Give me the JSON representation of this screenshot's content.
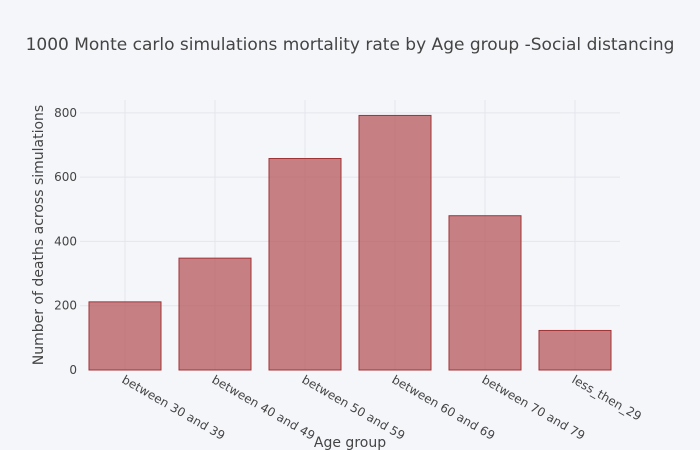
{
  "chart_data": {
    "type": "bar",
    "title": "1000 Monte carlo simulations mortality rate by Age group -Social distancing",
    "xlabel": "Age group",
    "ylabel": "Number of deaths across simulations",
    "categories": [
      "between 30 and 39",
      "between 40 and 49",
      "between 50 and 59",
      "between 60 and 69",
      "between 70 and 79",
      "less_then_29"
    ],
    "values": [
      212,
      348,
      658,
      792,
      480,
      123
    ],
    "ylim": [
      0,
      840
    ],
    "yticks": [
      0,
      200,
      400,
      600,
      800
    ],
    "grid": true,
    "legend": "none",
    "colors": {
      "bar_fill": "#b24f51",
      "bar_stroke": "#a03336",
      "background": "#f5f6fa"
    }
  }
}
